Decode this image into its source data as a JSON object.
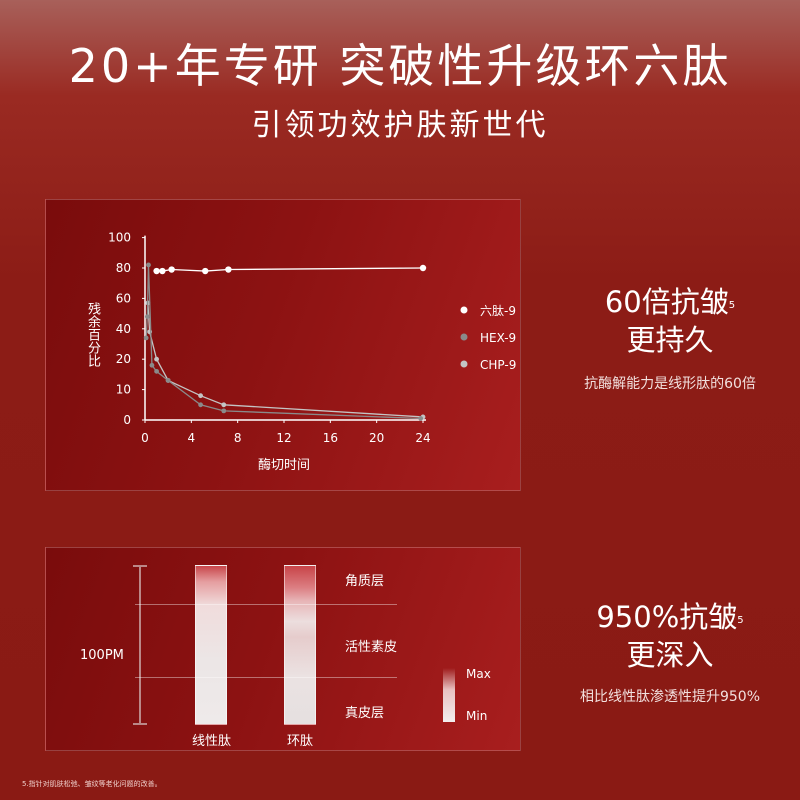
{
  "header": {
    "title": "20+年专研 突破性升级环六肽",
    "subtitle": "引领功效护肤新世代"
  },
  "chart_data": {
    "type": "line",
    "xlabel": "酶切时间",
    "ylabel": "残余百分比",
    "x_ticks": [
      0,
      4,
      8,
      12,
      16,
      20,
      24
    ],
    "y_ticks": [
      0,
      10,
      20,
      40,
      60,
      80,
      100
    ],
    "y_scale": "non-uniform (ticks evenly spaced)",
    "xlim": [
      0,
      24
    ],
    "ylim": [
      0,
      100
    ],
    "grid": false,
    "legend": "right",
    "series": [
      {
        "name": "六肽-9",
        "color": "#ffffff",
        "points": [
          [
            1,
            78
          ],
          [
            1.5,
            78
          ],
          [
            2.3,
            79
          ],
          [
            5.2,
            78
          ],
          [
            7.2,
            79
          ],
          [
            24,
            80
          ]
        ]
      },
      {
        "name": "HEX-9",
        "color": "#8a8a8a",
        "points": [
          [
            0.1,
            34
          ],
          [
            0.2,
            48
          ],
          [
            0.3,
            82
          ],
          [
            0.6,
            18
          ],
          [
            1,
            16
          ],
          [
            2,
            13
          ],
          [
            4.8,
            5
          ],
          [
            6.8,
            3
          ],
          [
            23.8,
            0.5
          ]
        ]
      },
      {
        "name": "CHP-9",
        "color": "#c4c4c4",
        "points": [
          [
            0.25,
            57
          ],
          [
            0.4,
            38
          ],
          [
            1,
            20
          ],
          [
            2,
            13
          ],
          [
            4.8,
            8
          ],
          [
            6.8,
            5
          ],
          [
            24,
            1
          ]
        ]
      }
    ]
  },
  "claims": [
    {
      "headline": "60倍抗皱",
      "sup": "5",
      "line2": "更持久",
      "desc": "抗酶解能力是线形肽的60倍"
    },
    {
      "headline": "950%抗皱",
      "sup": "5",
      "line2": "更深入",
      "desc": "相比线性肽渗透性提升950%"
    }
  ],
  "penetration": {
    "scale_label": "100PM",
    "layers": [
      "角质层",
      "活性素皮",
      "真皮层"
    ],
    "columns": [
      "线性肽",
      "环肽"
    ],
    "legend_max": "Max",
    "legend_min": "Min"
  },
  "footnote": "5.指针对肌肤松弛、皱纹等老化问题的改善。"
}
